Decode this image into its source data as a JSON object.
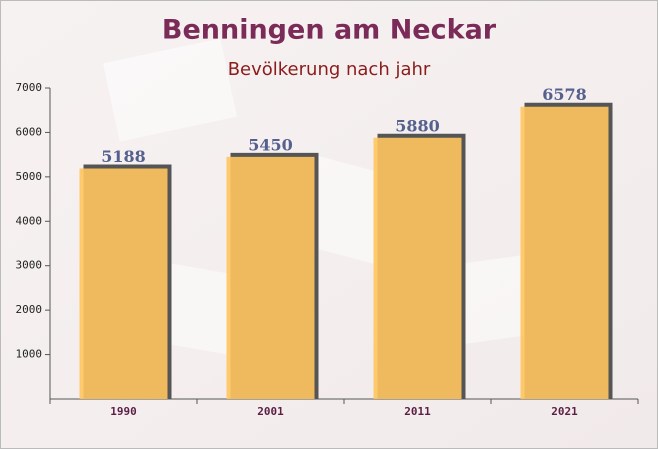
{
  "chart_data": {
    "type": "bar",
    "title": "Benningen am Neckar",
    "subtitle": "Bevölkerung nach jahr",
    "categories": [
      "1990",
      "2001",
      "2011",
      "2021"
    ],
    "values": [
      5188,
      5450,
      5880,
      6578
    ],
    "color": "#ffc55e",
    "ylim": [
      0,
      7000
    ],
    "yticks": [
      1000,
      2000,
      3000,
      4000,
      5000,
      6000,
      7000
    ]
  }
}
